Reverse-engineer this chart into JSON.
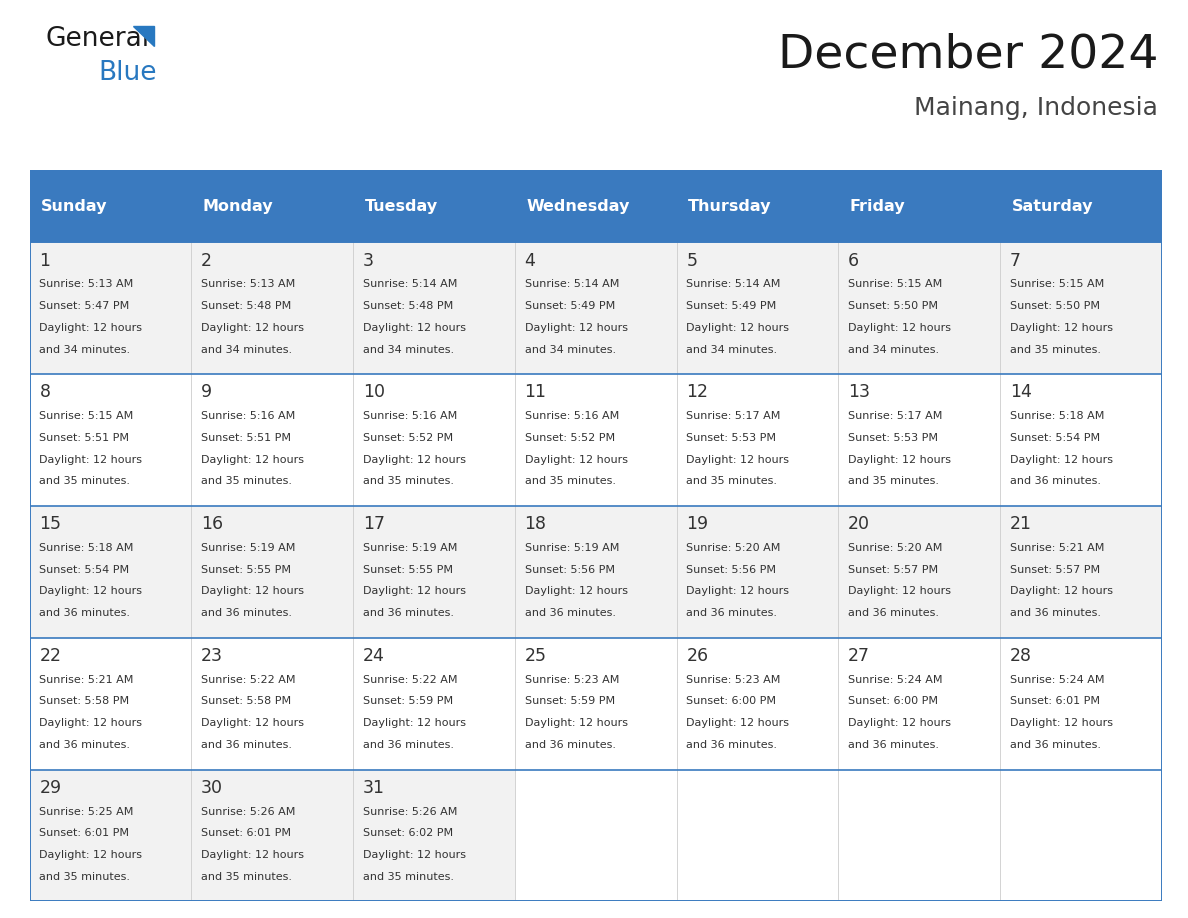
{
  "title": "December 2024",
  "subtitle": "Mainang, Indonesia",
  "header_bg_color": "#3a7abf",
  "header_text_color": "#ffffff",
  "days_of_week": [
    "Sunday",
    "Monday",
    "Tuesday",
    "Wednesday",
    "Thursday",
    "Friday",
    "Saturday"
  ],
  "cell_bg_even": "#f2f2f2",
  "cell_bg_odd": "#ffffff",
  "border_color": "#3a7abf",
  "row_line_color": "#3a7abf",
  "col_line_color": "#cccccc",
  "text_color": "#333333",
  "general_text_color": "#1a1a1a",
  "blue_text_color": "#2878c0",
  "calendar_data": [
    {
      "day": 1,
      "col": 0,
      "row": 0,
      "sunrise": "5:13 AM",
      "sunset": "5:47 PM",
      "daylight_hours": 12,
      "daylight_minutes": 34
    },
    {
      "day": 2,
      "col": 1,
      "row": 0,
      "sunrise": "5:13 AM",
      "sunset": "5:48 PM",
      "daylight_hours": 12,
      "daylight_minutes": 34
    },
    {
      "day": 3,
      "col": 2,
      "row": 0,
      "sunrise": "5:14 AM",
      "sunset": "5:48 PM",
      "daylight_hours": 12,
      "daylight_minutes": 34
    },
    {
      "day": 4,
      "col": 3,
      "row": 0,
      "sunrise": "5:14 AM",
      "sunset": "5:49 PM",
      "daylight_hours": 12,
      "daylight_minutes": 34
    },
    {
      "day": 5,
      "col": 4,
      "row": 0,
      "sunrise": "5:14 AM",
      "sunset": "5:49 PM",
      "daylight_hours": 12,
      "daylight_minutes": 34
    },
    {
      "day": 6,
      "col": 5,
      "row": 0,
      "sunrise": "5:15 AM",
      "sunset": "5:50 PM",
      "daylight_hours": 12,
      "daylight_minutes": 34
    },
    {
      "day": 7,
      "col": 6,
      "row": 0,
      "sunrise": "5:15 AM",
      "sunset": "5:50 PM",
      "daylight_hours": 12,
      "daylight_minutes": 35
    },
    {
      "day": 8,
      "col": 0,
      "row": 1,
      "sunrise": "5:15 AM",
      "sunset": "5:51 PM",
      "daylight_hours": 12,
      "daylight_minutes": 35
    },
    {
      "day": 9,
      "col": 1,
      "row": 1,
      "sunrise": "5:16 AM",
      "sunset": "5:51 PM",
      "daylight_hours": 12,
      "daylight_minutes": 35
    },
    {
      "day": 10,
      "col": 2,
      "row": 1,
      "sunrise": "5:16 AM",
      "sunset": "5:52 PM",
      "daylight_hours": 12,
      "daylight_minutes": 35
    },
    {
      "day": 11,
      "col": 3,
      "row": 1,
      "sunrise": "5:16 AM",
      "sunset": "5:52 PM",
      "daylight_hours": 12,
      "daylight_minutes": 35
    },
    {
      "day": 12,
      "col": 4,
      "row": 1,
      "sunrise": "5:17 AM",
      "sunset": "5:53 PM",
      "daylight_hours": 12,
      "daylight_minutes": 35
    },
    {
      "day": 13,
      "col": 5,
      "row": 1,
      "sunrise": "5:17 AM",
      "sunset": "5:53 PM",
      "daylight_hours": 12,
      "daylight_minutes": 35
    },
    {
      "day": 14,
      "col": 6,
      "row": 1,
      "sunrise": "5:18 AM",
      "sunset": "5:54 PM",
      "daylight_hours": 12,
      "daylight_minutes": 36
    },
    {
      "day": 15,
      "col": 0,
      "row": 2,
      "sunrise": "5:18 AM",
      "sunset": "5:54 PM",
      "daylight_hours": 12,
      "daylight_minutes": 36
    },
    {
      "day": 16,
      "col": 1,
      "row": 2,
      "sunrise": "5:19 AM",
      "sunset": "5:55 PM",
      "daylight_hours": 12,
      "daylight_minutes": 36
    },
    {
      "day": 17,
      "col": 2,
      "row": 2,
      "sunrise": "5:19 AM",
      "sunset": "5:55 PM",
      "daylight_hours": 12,
      "daylight_minutes": 36
    },
    {
      "day": 18,
      "col": 3,
      "row": 2,
      "sunrise": "5:19 AM",
      "sunset": "5:56 PM",
      "daylight_hours": 12,
      "daylight_minutes": 36
    },
    {
      "day": 19,
      "col": 4,
      "row": 2,
      "sunrise": "5:20 AM",
      "sunset": "5:56 PM",
      "daylight_hours": 12,
      "daylight_minutes": 36
    },
    {
      "day": 20,
      "col": 5,
      "row": 2,
      "sunrise": "5:20 AM",
      "sunset": "5:57 PM",
      "daylight_hours": 12,
      "daylight_minutes": 36
    },
    {
      "day": 21,
      "col": 6,
      "row": 2,
      "sunrise": "5:21 AM",
      "sunset": "5:57 PM",
      "daylight_hours": 12,
      "daylight_minutes": 36
    },
    {
      "day": 22,
      "col": 0,
      "row": 3,
      "sunrise": "5:21 AM",
      "sunset": "5:58 PM",
      "daylight_hours": 12,
      "daylight_minutes": 36
    },
    {
      "day": 23,
      "col": 1,
      "row": 3,
      "sunrise": "5:22 AM",
      "sunset": "5:58 PM",
      "daylight_hours": 12,
      "daylight_minutes": 36
    },
    {
      "day": 24,
      "col": 2,
      "row": 3,
      "sunrise": "5:22 AM",
      "sunset": "5:59 PM",
      "daylight_hours": 12,
      "daylight_minutes": 36
    },
    {
      "day": 25,
      "col": 3,
      "row": 3,
      "sunrise": "5:23 AM",
      "sunset": "5:59 PM",
      "daylight_hours": 12,
      "daylight_minutes": 36
    },
    {
      "day": 26,
      "col": 4,
      "row": 3,
      "sunrise": "5:23 AM",
      "sunset": "6:00 PM",
      "daylight_hours": 12,
      "daylight_minutes": 36
    },
    {
      "day": 27,
      "col": 5,
      "row": 3,
      "sunrise": "5:24 AM",
      "sunset": "6:00 PM",
      "daylight_hours": 12,
      "daylight_minutes": 36
    },
    {
      "day": 28,
      "col": 6,
      "row": 3,
      "sunrise": "5:24 AM",
      "sunset": "6:01 PM",
      "daylight_hours": 12,
      "daylight_minutes": 36
    },
    {
      "day": 29,
      "col": 0,
      "row": 4,
      "sunrise": "5:25 AM",
      "sunset": "6:01 PM",
      "daylight_hours": 12,
      "daylight_minutes": 35
    },
    {
      "day": 30,
      "col": 1,
      "row": 4,
      "sunrise": "5:26 AM",
      "sunset": "6:01 PM",
      "daylight_hours": 12,
      "daylight_minutes": 35
    },
    {
      "day": 31,
      "col": 2,
      "row": 4,
      "sunrise": "5:26 AM",
      "sunset": "6:02 PM",
      "daylight_hours": 12,
      "daylight_minutes": 35
    }
  ]
}
